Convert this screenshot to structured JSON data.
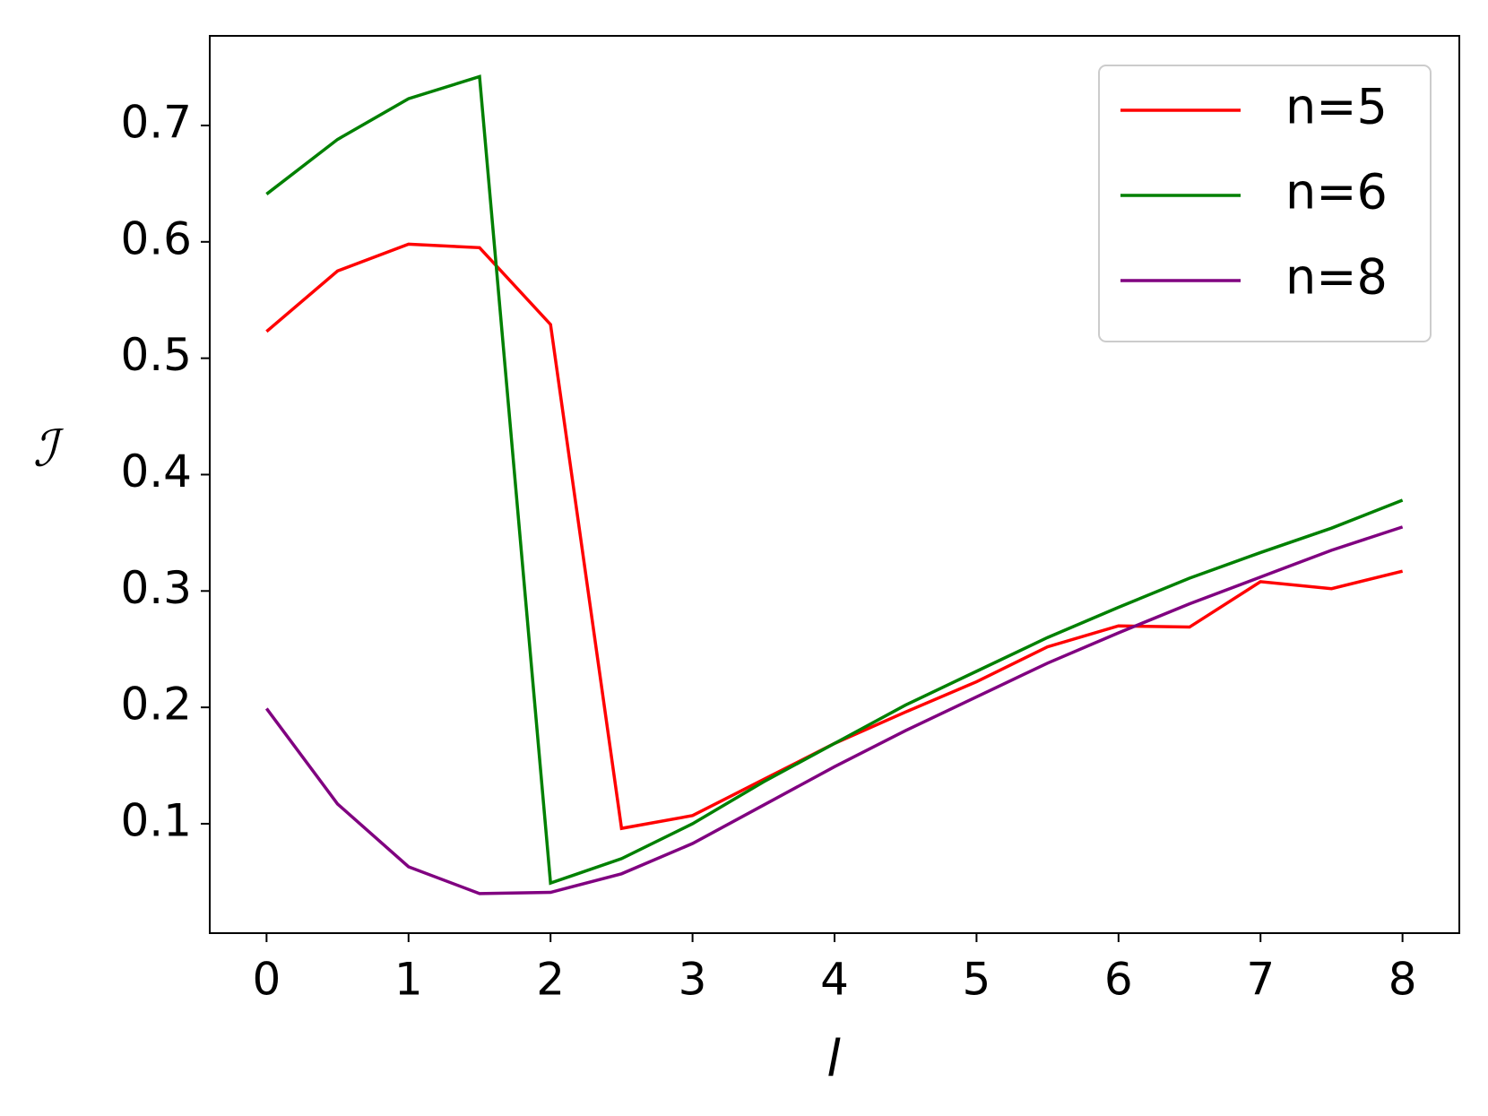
{
  "chart_data": {
    "type": "line",
    "x_label": "l",
    "y_label": "ℐ",
    "x": [
      0,
      0.5,
      1,
      1.5,
      2,
      2.5,
      3,
      3.5,
      4,
      4.5,
      5,
      5.5,
      6,
      6.5,
      7,
      7.5,
      8
    ],
    "series": [
      {
        "name": "n=5",
        "color": "#ff0000",
        "values": [
          0.523,
          0.575,
          0.598,
          0.595,
          0.529,
          0.096,
          0.107,
          0.138,
          0.169,
          0.196,
          0.222,
          0.252,
          0.27,
          0.269,
          0.308,
          0.302,
          0.317
        ]
      },
      {
        "name": "n=6",
        "color": "#008000",
        "values": [
          0.641,
          0.688,
          0.723,
          0.742,
          0.049,
          0.07,
          0.1,
          0.136,
          0.169,
          0.202,
          0.231,
          0.26,
          0.286,
          0.311,
          0.333,
          0.354,
          0.378
        ]
      },
      {
        "name": "n=8",
        "color": "#800080",
        "values": [
          0.199,
          0.117,
          0.063,
          0.04,
          0.041,
          0.057,
          0.083,
          0.116,
          0.149,
          0.18,
          0.209,
          0.238,
          0.264,
          0.289,
          0.312,
          0.335,
          0.355
        ]
      }
    ],
    "xlim": [
      -0.4,
      8.4
    ],
    "ylim": [
      0.006,
      0.777
    ],
    "xticks": [
      0,
      1,
      2,
      3,
      4,
      5,
      6,
      7,
      8
    ],
    "yticks": [
      0.1,
      0.2,
      0.3,
      0.4,
      0.5,
      0.6,
      0.7
    ],
    "legend": "upper right",
    "grid": false
  }
}
